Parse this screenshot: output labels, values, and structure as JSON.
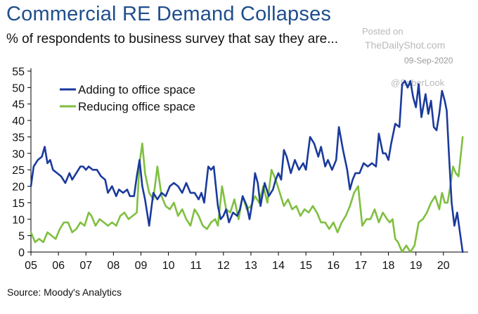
{
  "header": {
    "title": "Commercial RE Demand Collapses",
    "subtitle": "% of respondents to business survey that say they are..."
  },
  "watermark": {
    "posted": "Posted on",
    "site": "TheDailyShot.com",
    "date": "09-Sep-2020",
    "credit": "@SoberLook"
  },
  "source": "Source: Moody's Analytics",
  "chart_data": {
    "type": "line",
    "title": "Commercial RE Demand Collapses",
    "subtitle": "% of respondents to business survey that say they are...",
    "xlabel": "",
    "ylabel": "",
    "ylim": [
      0,
      55
    ],
    "xlim": [
      2005,
      2020.9
    ],
    "y_ticks": [
      0,
      5,
      10,
      15,
      20,
      25,
      30,
      35,
      40,
      45,
      50,
      55
    ],
    "x_ticks": [
      {
        "label": "05",
        "value": 2005
      },
      {
        "label": "06",
        "value": 2006
      },
      {
        "label": "07",
        "value": 2007
      },
      {
        "label": "08",
        "value": 2008
      },
      {
        "label": "09",
        "value": 2009
      },
      {
        "label": "10",
        "value": 2010
      },
      {
        "label": "11",
        "value": 2011
      },
      {
        "label": "12",
        "value": 2012
      },
      {
        "label": "13",
        "value": 2013
      },
      {
        "label": "14",
        "value": 2014
      },
      {
        "label": "15",
        "value": 2015
      },
      {
        "label": "16",
        "value": 2016
      },
      {
        "label": "17",
        "value": 2017
      },
      {
        "label": "18",
        "value": 2018
      },
      {
        "label": "19",
        "value": 2019
      },
      {
        "label": "20",
        "value": 2020
      }
    ],
    "legend_position": "top-left",
    "series": [
      {
        "name": "Adding to office space",
        "color": "#1a3a9c",
        "x": [
          2005.0,
          2005.1,
          2005.25,
          2005.4,
          2005.5,
          2005.6,
          2005.7,
          2005.8,
          2005.95,
          2006.1,
          2006.25,
          2006.4,
          2006.5,
          2006.65,
          2006.8,
          2006.9,
          2007.0,
          2007.1,
          2007.25,
          2007.4,
          2007.55,
          2007.7,
          2007.8,
          2007.95,
          2008.1,
          2008.2,
          2008.35,
          2008.5,
          2008.6,
          2008.75,
          2008.85,
          2008.95,
          2009.05,
          2009.15,
          2009.3,
          2009.45,
          2009.6,
          2009.75,
          2009.9,
          2010.05,
          2010.2,
          2010.35,
          2010.5,
          2010.65,
          2010.8,
          2010.95,
          2011.1,
          2011.2,
          2011.3,
          2011.45,
          2011.55,
          2011.65,
          2011.8,
          2011.9,
          2012.0,
          2012.1,
          2012.2,
          2012.35,
          2012.5,
          2012.6,
          2012.7,
          2012.85,
          2012.95,
          2013.05,
          2013.15,
          2013.25,
          2013.35,
          2013.5,
          2013.65,
          2013.8,
          2013.9,
          2014.0,
          2014.1,
          2014.2,
          2014.3,
          2014.45,
          2014.6,
          2014.75,
          2014.9,
          2015.0,
          2015.15,
          2015.3,
          2015.45,
          2015.55,
          2015.7,
          2015.8,
          2015.95,
          2016.1,
          2016.2,
          2016.35,
          2016.5,
          2016.6,
          2016.7,
          2016.8,
          2016.95,
          2017.1,
          2017.25,
          2017.4,
          2017.55,
          2017.65,
          2017.8,
          2017.9,
          2018.0,
          2018.1,
          2018.25,
          2018.4,
          2018.5,
          2018.6,
          2018.7,
          2018.8,
          2018.9,
          2019.0,
          2019.1,
          2019.2,
          2019.35,
          2019.45,
          2019.55,
          2019.65,
          2019.75,
          2019.85,
          2019.95,
          2020.05,
          2020.12,
          2020.2,
          2020.3,
          2020.4,
          2020.5,
          2020.6,
          2020.7
        ],
        "values": [
          20,
          26,
          28,
          29,
          32,
          27,
          28,
          25,
          24,
          23,
          21,
          24,
          22,
          24,
          26,
          26,
          25,
          26,
          25,
          25,
          23,
          22,
          18,
          20,
          17,
          19,
          18,
          19,
          17,
          17,
          23,
          28,
          20,
          16,
          8,
          18,
          16,
          18,
          17,
          20,
          21,
          20,
          18,
          21,
          18,
          18,
          16,
          18,
          15,
          26,
          25,
          26,
          14,
          10,
          11,
          13,
          9,
          12,
          11,
          13,
          17,
          14,
          10,
          15,
          24,
          21,
          14,
          21,
          17,
          19,
          22,
          24,
          22,
          31,
          29,
          24,
          28,
          25,
          27,
          25,
          35,
          33,
          29,
          32,
          26,
          28,
          25,
          28,
          38,
          31,
          25,
          19,
          22,
          24,
          24,
          27,
          26,
          27,
          26,
          36,
          30,
          30,
          28,
          33,
          39,
          38,
          51,
          52,
          50,
          52,
          47,
          44,
          51,
          41,
          48,
          42,
          46,
          38,
          37,
          42,
          49,
          46,
          43,
          30,
          15,
          8,
          12,
          6,
          0
        ],
        "label": "Adding to office space"
      },
      {
        "name": "Reducing office space",
        "color": "#7fbf3f",
        "x": [
          2005.0,
          2005.15,
          2005.3,
          2005.45,
          2005.6,
          2005.75,
          2005.9,
          2006.05,
          2006.2,
          2006.35,
          2006.5,
          2006.65,
          2006.8,
          2006.95,
          2007.1,
          2007.2,
          2007.35,
          2007.5,
          2007.65,
          2007.8,
          2007.95,
          2008.1,
          2008.25,
          2008.4,
          2008.55,
          2008.7,
          2008.85,
          2008.95,
          2009.05,
          2009.15,
          2009.3,
          2009.45,
          2009.6,
          2009.75,
          2009.9,
          2010.05,
          2010.2,
          2010.35,
          2010.5,
          2010.65,
          2010.8,
          2010.95,
          2011.1,
          2011.25,
          2011.4,
          2011.55,
          2011.7,
          2011.8,
          2011.95,
          2012.1,
          2012.25,
          2012.4,
          2012.55,
          2012.7,
          2012.85,
          2013.0,
          2013.15,
          2013.3,
          2013.45,
          2013.6,
          2013.75,
          2013.9,
          2014.05,
          2014.2,
          2014.35,
          2014.5,
          2014.65,
          2014.8,
          2014.95,
          2015.1,
          2015.25,
          2015.4,
          2015.55,
          2015.7,
          2015.85,
          2016.0,
          2016.15,
          2016.3,
          2016.45,
          2016.6,
          2016.75,
          2016.9,
          2017.05,
          2017.2,
          2017.35,
          2017.5,
          2017.65,
          2017.8,
          2017.95,
          2018.05,
          2018.15,
          2018.25,
          2018.35,
          2018.5,
          2018.65,
          2018.8,
          2018.95,
          2019.1,
          2019.25,
          2019.4,
          2019.55,
          2019.7,
          2019.85,
          2019.95,
          2020.05,
          2020.15,
          2020.25,
          2020.35,
          2020.45,
          2020.55,
          2020.7
        ],
        "values": [
          6,
          3,
          4,
          3,
          6,
          5,
          4,
          7,
          9,
          9,
          6,
          7,
          9,
          8,
          12,
          11,
          8,
          10,
          9,
          8,
          9,
          8,
          11,
          12,
          10,
          11,
          12,
          27,
          33,
          24,
          18,
          16,
          26,
          17,
          14,
          13,
          15,
          11,
          13,
          10,
          8,
          13,
          11,
          8,
          7,
          9,
          10,
          8,
          20,
          13,
          12,
          16,
          10,
          17,
          13,
          14,
          17,
          15,
          20,
          15,
          25,
          22,
          18,
          14,
          16,
          13,
          14,
          11,
          13,
          12,
          14,
          12,
          9,
          9,
          7,
          9,
          6,
          9,
          11,
          14,
          18,
          20,
          8,
          10,
          10,
          13,
          9,
          12,
          10,
          9,
          10,
          4,
          3,
          0,
          2,
          0,
          2,
          9,
          10,
          12,
          15,
          17,
          13,
          18,
          15,
          15,
          20,
          26,
          24,
          23,
          35
        ],
        "label": "Reducing office space"
      }
    ]
  }
}
